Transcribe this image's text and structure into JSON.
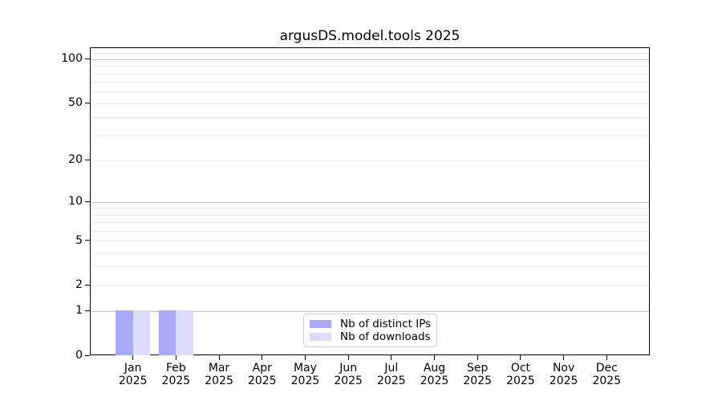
{
  "chart_data": {
    "type": "bar",
    "title": "argusDS.model.tools 2025",
    "categories": [
      "Jan",
      "Feb",
      "Mar",
      "Apr",
      "May",
      "Jun",
      "Jul",
      "Aug",
      "Sep",
      "Oct",
      "Nov",
      "Dec"
    ],
    "x_tick_year": "2025",
    "series": [
      {
        "name": "Nb of distinct IPs",
        "color": "#a9a9f7",
        "values": [
          1,
          1,
          0,
          0,
          0,
          0,
          0,
          0,
          0,
          0,
          0,
          0
        ]
      },
      {
        "name": "Nb of downloads",
        "color": "#dcdcfa",
        "values": [
          1,
          1,
          0,
          0,
          0,
          0,
          0,
          0,
          0,
          0,
          0,
          0
        ]
      }
    ],
    "yscale": "log1p",
    "ylim": [
      0,
      120
    ],
    "xlim": [
      0,
      13
    ],
    "yticks": [
      0,
      1,
      2,
      5,
      10,
      20,
      50,
      100
    ],
    "grid_major": [
      1,
      10,
      100
    ],
    "grid_minor": [
      2,
      3,
      4,
      5,
      6,
      7,
      8,
      9,
      20,
      30,
      40,
      50,
      60,
      70,
      80,
      90,
      110
    ],
    "grid": "on",
    "legend_position": "lower center inside",
    "colors": {
      "grid_major": "#c4c4c4",
      "grid_minor": "#ebebeb",
      "spine": "#000000",
      "text": "#000000",
      "legend_border": "#d0d0d0",
      "background": "#ffffff"
    }
  }
}
